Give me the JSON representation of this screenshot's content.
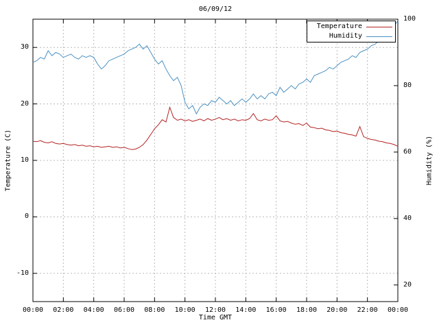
{
  "chart_data": {
    "type": "line",
    "title": "06/09/12",
    "xlabel": "Time GMT",
    "grid": true,
    "legend_position": "top-right",
    "x_step_minutes": 15,
    "x_tick_hours": [
      0,
      2,
      4,
      6,
      8,
      10,
      12,
      14,
      16,
      18,
      20,
      22,
      24
    ],
    "x_tick_labels": [
      "00:00",
      "02:00",
      "04:00",
      "06:00",
      "08:00",
      "10:00",
      "12:00",
      "14:00",
      "16:00",
      "18:00",
      "20:00",
      "22:00",
      "00:00"
    ],
    "axes": {
      "left": {
        "label": "Temperature (C)",
        "ticks": [
          -10,
          0,
          10,
          20,
          30
        ],
        "range": [
          -15,
          35
        ]
      },
      "right": {
        "label": "Humidity (%)",
        "ticks": [
          20,
          40,
          60,
          80,
          100
        ],
        "range": [
          15,
          100
        ]
      }
    },
    "series": [
      {
        "name": "Temperature",
        "axis": "left",
        "color": "#b22222",
        "values": [
          13.4,
          13.3,
          13.5,
          13.2,
          13.1,
          13.3,
          13.0,
          12.9,
          13.0,
          12.8,
          12.7,
          12.8,
          12.6,
          12.7,
          12.5,
          12.6,
          12.4,
          12.5,
          12.3,
          12.4,
          12.5,
          12.3,
          12.4,
          12.2,
          12.3,
          12.1,
          11.9,
          12.0,
          12.3,
          12.8,
          13.6,
          14.6,
          15.6,
          16.3,
          17.2,
          16.8,
          19.4,
          17.6,
          17.1,
          17.3,
          17.0,
          17.2,
          16.9,
          17.1,
          17.3,
          17.0,
          17.4,
          17.1,
          17.3,
          17.6,
          17.2,
          17.4,
          17.1,
          17.3,
          17.0,
          17.2,
          17.1,
          17.4,
          18.3,
          17.2,
          17.0,
          17.3,
          17.1,
          17.2,
          17.9,
          17.0,
          16.8,
          16.9,
          16.6,
          16.4,
          16.5,
          16.2,
          16.6,
          15.9,
          15.8,
          15.6,
          15.7,
          15.4,
          15.3,
          15.1,
          15.2,
          14.9,
          14.8,
          14.6,
          14.5,
          14.3,
          16.0,
          14.2,
          13.9,
          13.7,
          13.6,
          13.4,
          13.3,
          13.1,
          13.0,
          12.8,
          12.5
        ]
      },
      {
        "name": "Humidity",
        "axis": "right",
        "color": "#4a90c2",
        "values": [
          87.0,
          87.5,
          88.5,
          88.0,
          90.5,
          89.0,
          90.0,
          89.5,
          88.5,
          89.0,
          89.5,
          88.5,
          88.0,
          89.0,
          88.5,
          89.0,
          88.5,
          86.5,
          85.0,
          86.0,
          87.5,
          88.0,
          88.5,
          89.0,
          89.5,
          90.5,
          91.0,
          91.5,
          92.5,
          91.0,
          92.0,
          90.0,
          88.0,
          86.5,
          87.5,
          85.0,
          83.0,
          81.5,
          82.5,
          80.0,
          75.0,
          73.0,
          74.0,
          71.5,
          73.5,
          74.5,
          74.0,
          75.5,
          75.0,
          76.5,
          75.5,
          74.5,
          75.5,
          74.0,
          75.0,
          76.0,
          75.0,
          76.0,
          77.5,
          76.0,
          77.0,
          76.0,
          77.5,
          78.0,
          77.0,
          79.5,
          78.0,
          79.0,
          80.0,
          79.0,
          80.5,
          81.0,
          82.0,
          81.0,
          83.0,
          83.5,
          84.0,
          84.5,
          85.5,
          85.0,
          86.0,
          87.0,
          87.5,
          88.0,
          89.0,
          88.5,
          90.0,
          90.5,
          91.0,
          92.0,
          92.5,
          93.5,
          94.5,
          95.5,
          96.5,
          98.0,
          99.5
        ]
      }
    ]
  }
}
